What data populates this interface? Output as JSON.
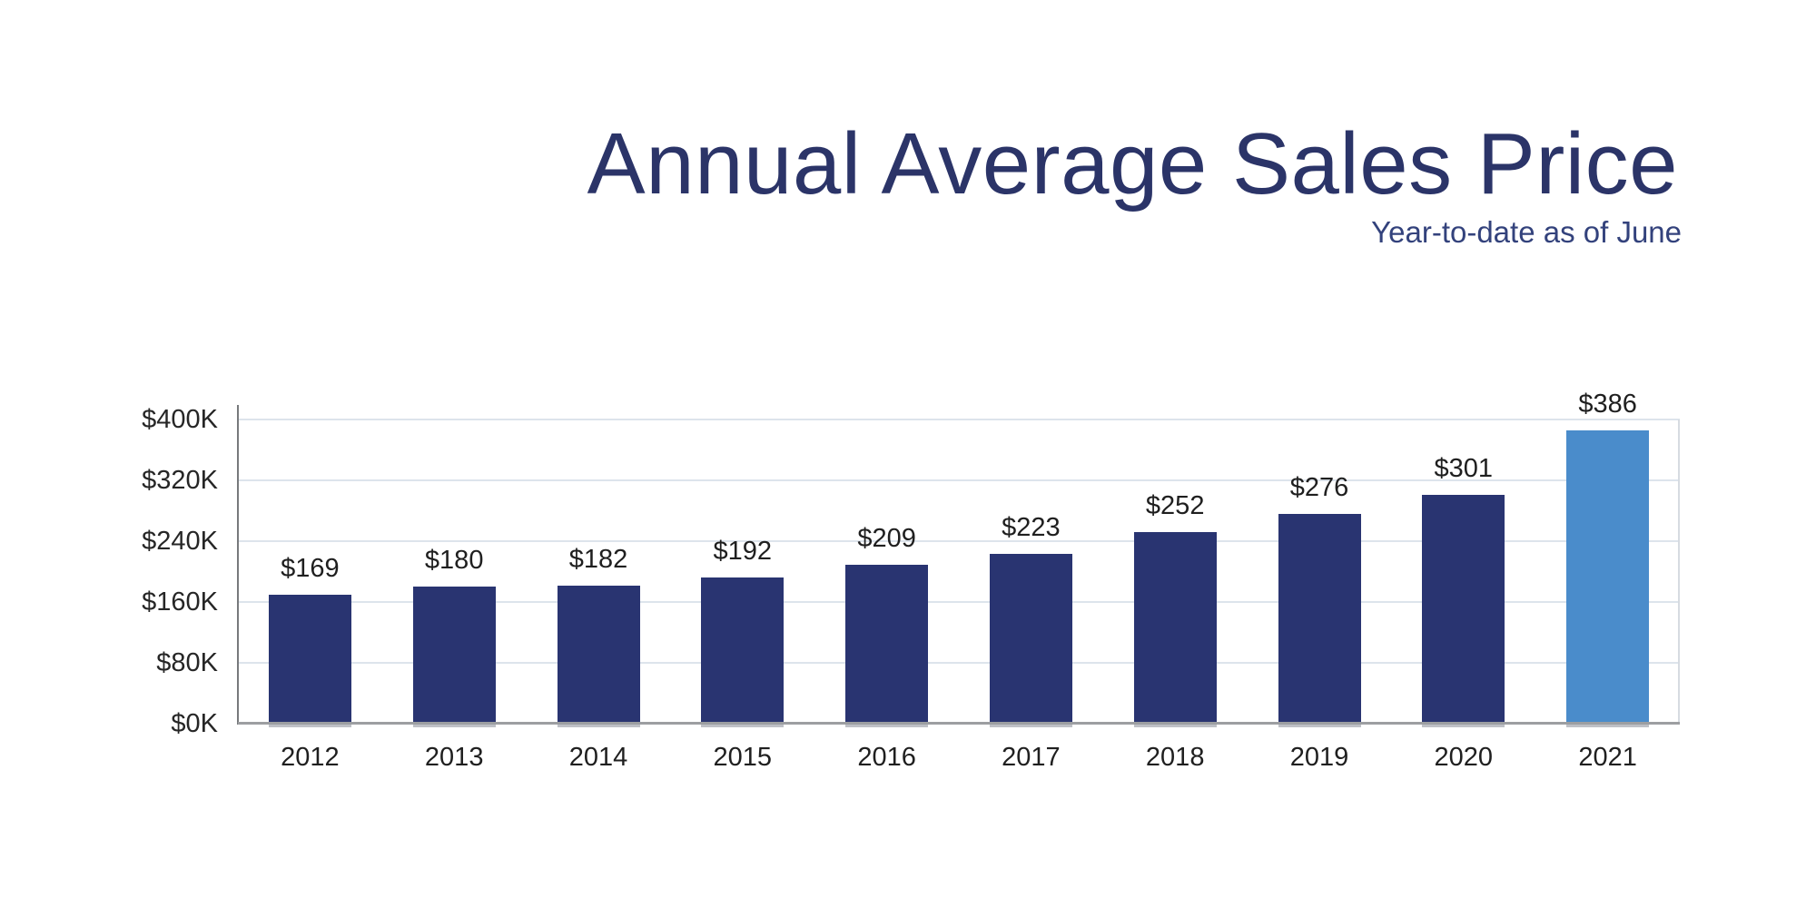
{
  "page": {
    "title": "Annual Average Sales Price",
    "subtitle": "Year-to-date as of June"
  },
  "chart_data": {
    "type": "bar",
    "title": "Annual Average Sales Price",
    "subtitle": "Year-to-date as of June",
    "categories": [
      "2012",
      "2013",
      "2014",
      "2015",
      "2016",
      "2017",
      "2018",
      "2019",
      "2020",
      "2021"
    ],
    "values": [
      169,
      180,
      182,
      192,
      209,
      223,
      252,
      276,
      301,
      386
    ],
    "value_labels": [
      "$169",
      "$180",
      "$182",
      "$192",
      "$209",
      "$223",
      "$252",
      "$276",
      "$301",
      "$386"
    ],
    "y_ticks": [
      {
        "label": "$0K",
        "value": 0
      },
      {
        "label": "$80K",
        "value": 80
      },
      {
        "label": "$160K",
        "value": 160
      },
      {
        "label": "$240K",
        "value": 240
      },
      {
        "label": "$320K",
        "value": 320
      },
      {
        "label": "$400K",
        "value": 400
      }
    ],
    "ylim": [
      0,
      400
    ],
    "grid": true,
    "legend": "none",
    "highlight_index": 9,
    "colors": {
      "bar": "#293471",
      "highlight": "#4a8ccb",
      "title": "#2b3468",
      "subtitle": "#33427c",
      "grid": "#dde4ec",
      "y_axis": "#77797c",
      "baseline": "#9c9ea1",
      "right_border": "#d6dbe1",
      "bar_shadow": "rgba(110,115,128,0.45)"
    }
  }
}
